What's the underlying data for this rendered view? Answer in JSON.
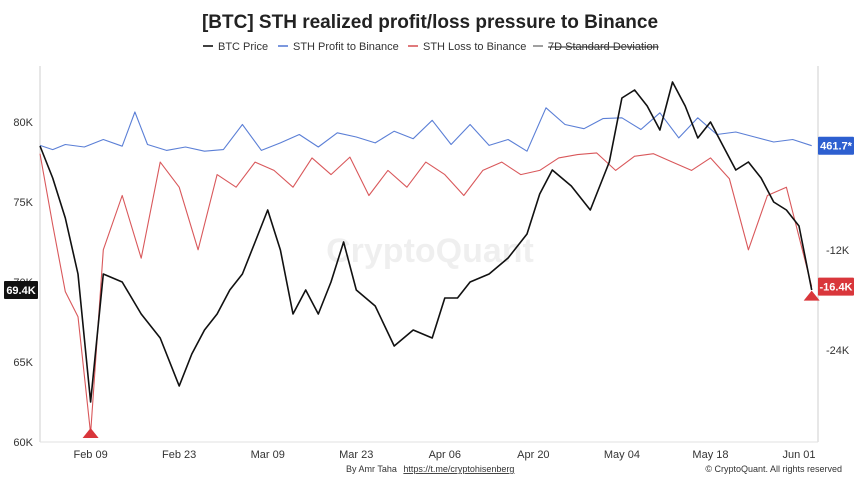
{
  "chart_data": {
    "type": "line",
    "title": "[BTC] STH realized profit/loss pressure to Binance",
    "legend": [
      {
        "label": "BTC Price",
        "color": "#111111",
        "struck": false
      },
      {
        "label": "STH Profit to Binance",
        "color": "#5b7fd6",
        "struck": false
      },
      {
        "label": "STH Loss to Binance",
        "color": "#d9585b",
        "struck": false
      },
      {
        "label": "7D Standard Deviation",
        "color": "#888888",
        "struck": true
      }
    ],
    "legend_position": "top-center",
    "watermark": "CryptoQuant",
    "x_ticks": [
      "Feb 09",
      "Feb 23",
      "Mar 09",
      "Mar 23",
      "Apr 06",
      "Apr 20",
      "May 04",
      "May 18",
      "Jun 01"
    ],
    "x_range": [
      "2025-02-01",
      "2025-06-04"
    ],
    "y_left": {
      "ticks": [
        "60K",
        "65K",
        "70K",
        "75K",
        "80K"
      ],
      "range": [
        60000,
        83500
      ]
    },
    "y_right": {
      "ticks": [
        "-24K",
        "-12K"
      ],
      "range": [
        -35000,
        10000
      ]
    },
    "series": [
      {
        "name": "BTC Price",
        "axis": "left",
        "color": "#111111",
        "x": [
          "2025-02-01",
          "2025-02-03",
          "2025-02-05",
          "2025-02-07",
          "2025-02-09",
          "2025-02-11",
          "2025-02-14",
          "2025-02-17",
          "2025-02-20",
          "2025-02-23",
          "2025-02-25",
          "2025-02-27",
          "2025-03-01",
          "2025-03-03",
          "2025-03-05",
          "2025-03-07",
          "2025-03-09",
          "2025-03-11",
          "2025-03-13",
          "2025-03-15",
          "2025-03-17",
          "2025-03-19",
          "2025-03-21",
          "2025-03-23",
          "2025-03-26",
          "2025-03-29",
          "2025-04-01",
          "2025-04-04",
          "2025-04-06",
          "2025-04-08",
          "2025-04-10",
          "2025-04-13",
          "2025-04-16",
          "2025-04-19",
          "2025-04-21",
          "2025-04-23",
          "2025-04-26",
          "2025-04-29",
          "2025-05-02",
          "2025-05-04",
          "2025-05-06",
          "2025-05-08",
          "2025-05-10",
          "2025-05-12",
          "2025-05-14",
          "2025-05-16",
          "2025-05-18",
          "2025-05-20",
          "2025-05-22",
          "2025-05-24",
          "2025-05-26",
          "2025-05-28",
          "2025-05-30",
          "2025-06-01",
          "2025-06-03"
        ],
        "values": [
          78500,
          76500,
          74000,
          70500,
          62500,
          70500,
          70000,
          68000,
          66500,
          63500,
          65500,
          67000,
          68000,
          69500,
          70500,
          72500,
          74500,
          72000,
          68000,
          69500,
          68000,
          70000,
          72500,
          69500,
          68500,
          66000,
          67000,
          66500,
          69000,
          69000,
          70000,
          70500,
          71500,
          73000,
          75500,
          77000,
          76000,
          74500,
          77500,
          81500,
          82000,
          81000,
          79500,
          82500,
          81000,
          79000,
          80000,
          78500,
          77000,
          77500,
          76500,
          75000,
          74500,
          73500,
          69500
        ]
      },
      {
        "name": "STH Profit to Binance",
        "axis": "right",
        "color": "#5b7fd6",
        "x": [
          "2025-02-01",
          "2025-02-03",
          "2025-02-05",
          "2025-02-08",
          "2025-02-11",
          "2025-02-14",
          "2025-02-16",
          "2025-02-18",
          "2025-02-21",
          "2025-02-24",
          "2025-02-27",
          "2025-03-02",
          "2025-03-05",
          "2025-03-08",
          "2025-03-11",
          "2025-03-14",
          "2025-03-17",
          "2025-03-20",
          "2025-03-23",
          "2025-03-26",
          "2025-03-29",
          "2025-04-01",
          "2025-04-04",
          "2025-04-07",
          "2025-04-10",
          "2025-04-13",
          "2025-04-16",
          "2025-04-19",
          "2025-04-22",
          "2025-04-25",
          "2025-04-28",
          "2025-05-01",
          "2025-05-04",
          "2025-05-07",
          "2025-05-10",
          "2025-05-13",
          "2025-05-16",
          "2025-05-19",
          "2025-05-22",
          "2025-05-25",
          "2025-05-28",
          "2025-05-31",
          "2025-06-03"
        ],
        "values": [
          500,
          0,
          600,
          300,
          1200,
          400,
          4500,
          600,
          -100,
          300,
          -200,
          0,
          3000,
          -100,
          800,
          1800,
          300,
          2000,
          1500,
          800,
          2200,
          1300,
          3500,
          600,
          3000,
          500,
          1200,
          -200,
          5000,
          3000,
          2500,
          3700,
          3800,
          2400,
          4400,
          1400,
          3800,
          1800,
          2100,
          1500,
          900,
          1200,
          462
        ]
      },
      {
        "name": "STH Loss to Binance",
        "axis": "right",
        "color": "#d9585b",
        "x": [
          "2025-02-01",
          "2025-02-03",
          "2025-02-05",
          "2025-02-07",
          "2025-02-09",
          "2025-02-11",
          "2025-02-14",
          "2025-02-17",
          "2025-02-20",
          "2025-02-23",
          "2025-02-26",
          "2025-03-01",
          "2025-03-04",
          "2025-03-07",
          "2025-03-10",
          "2025-03-13",
          "2025-03-16",
          "2025-03-19",
          "2025-03-22",
          "2025-03-25",
          "2025-03-28",
          "2025-03-31",
          "2025-04-03",
          "2025-04-06",
          "2025-04-09",
          "2025-04-12",
          "2025-04-15",
          "2025-04-18",
          "2025-04-21",
          "2025-04-24",
          "2025-04-27",
          "2025-04-30",
          "2025-05-03",
          "2025-05-06",
          "2025-05-09",
          "2025-05-12",
          "2025-05-15",
          "2025-05-18",
          "2025-05-21",
          "2025-05-24",
          "2025-05-27",
          "2025-05-30",
          "2025-06-03"
        ],
        "values": [
          -500,
          -9000,
          -17000,
          -20000,
          -34000,
          -12000,
          -5500,
          -13000,
          -1500,
          -4500,
          -12000,
          -3000,
          -4500,
          -1500,
          -2500,
          -4500,
          -1000,
          -3000,
          -900,
          -5500,
          -2500,
          -4500,
          -1500,
          -3000,
          -5500,
          -2500,
          -1500,
          -3000,
          -2500,
          -1000,
          -600,
          -400,
          -2500,
          -800,
          -500,
          -1500,
          -2500,
          -1000,
          -3500,
          -12000,
          -5500,
          -4500,
          -16400
        ]
      }
    ],
    "badges": {
      "price_left": "69.4K",
      "right_top": "461.7*",
      "right_bottom": "-16.4K"
    },
    "colors": {
      "profit_badge": "#2d5fd0",
      "loss_badge": "#d9363b",
      "price_badge": "#111111",
      "marker": "#d9363b"
    },
    "footer": {
      "author": "By Amr Taha",
      "link": "https://t.me/cryptohisenberg",
      "copyright": "© CryptoQuant. All rights reserved"
    }
  }
}
